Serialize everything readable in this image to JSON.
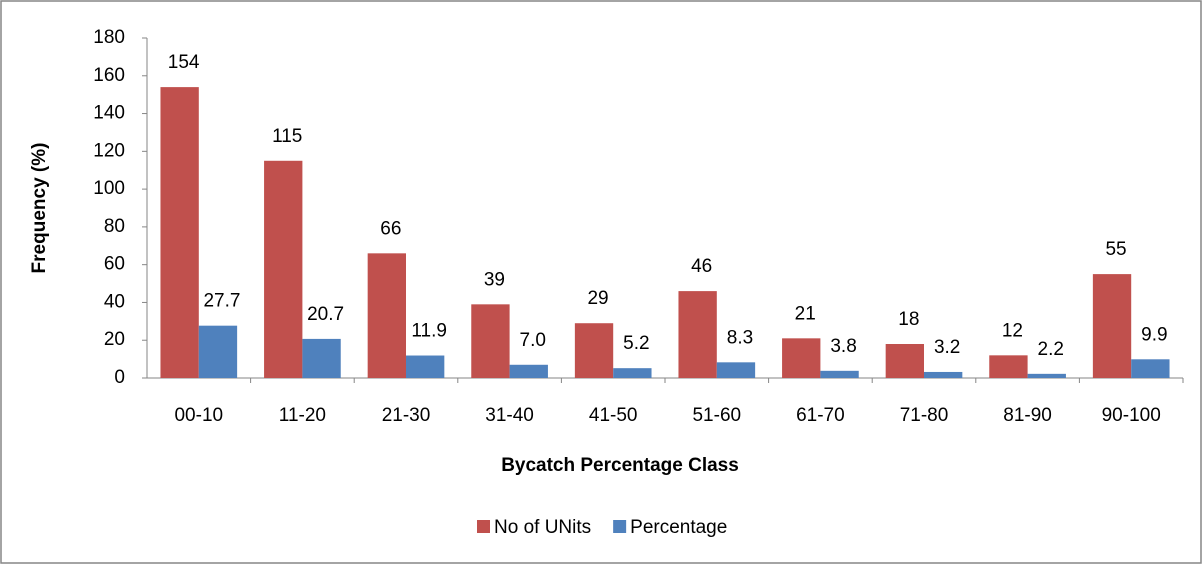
{
  "chart_data": {
    "type": "bar",
    "x_label": "Bycatch Percentage Class",
    "y_label": "Frequency (%)",
    "categories": [
      "00-10",
      "11-20",
      "21-30",
      "31-40",
      "41-50",
      "51-60",
      "61-70",
      "71-80",
      "81-90",
      "90-100"
    ],
    "series": [
      {
        "name": "No of UNits",
        "color": "#c0504d",
        "values": [
          154,
          115,
          66,
          39,
          29,
          46,
          21,
          18,
          12,
          55
        ]
      },
      {
        "name": "Percentage",
        "color": "#4f81bd",
        "values": [
          27.7,
          20.7,
          11.9,
          7.0,
          5.2,
          8.3,
          3.8,
          3.2,
          2.2,
          9.9
        ],
        "value_labels": [
          "27.7",
          "20.7",
          "11.9",
          "7.0",
          "5.2",
          "8.3",
          "3.8",
          "3.2",
          "2.2",
          "9.9"
        ]
      }
    ],
    "ylim": [
      0,
      180
    ],
    "yticks": [
      0,
      20,
      40,
      60,
      80,
      100,
      120,
      140,
      160,
      180
    ],
    "grid": false,
    "legend": "bottom"
  }
}
